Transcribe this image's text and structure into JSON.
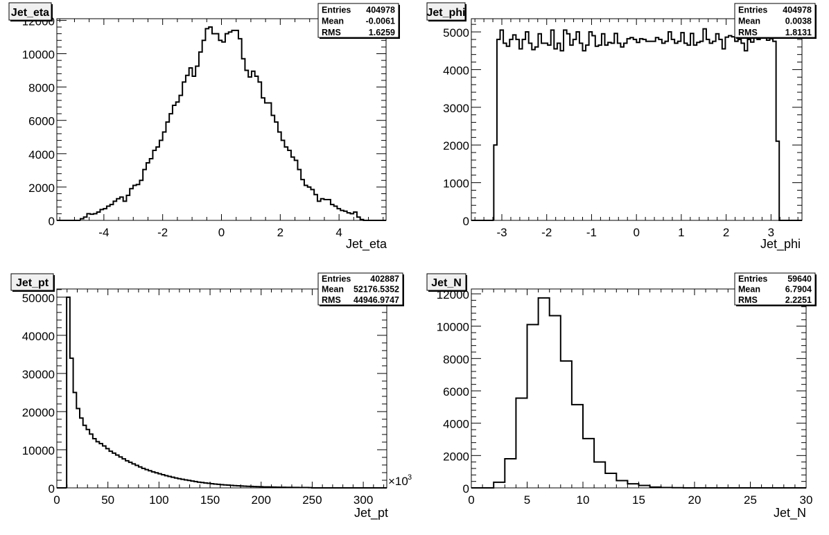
{
  "canvas": {
    "background": "#ffffff",
    "line_color": "#000000",
    "title_box_fill": "#f0f0f0"
  },
  "chart_data": [
    {
      "type": "bar",
      "histogram": true,
      "title": "Jet_eta",
      "xlabel": "Jet_eta",
      "ylabel": "",
      "xlim": [
        -5.6,
        5.6
      ],
      "ylim": [
        0,
        12100
      ],
      "xticks": [
        -4,
        -2,
        0,
        2,
        4
      ],
      "xtick_labels": [
        "-4",
        "-2",
        "0",
        "2",
        "4"
      ],
      "yticks": [
        0,
        2000,
        4000,
        6000,
        8000,
        10000,
        12000
      ],
      "ytick_labels": [
        "0",
        "2000",
        "4000",
        "6000",
        "8000",
        "10000",
        "12000"
      ],
      "x_multiplier_label": "",
      "bin_start": -4.8,
      "bin_width": 0.112,
      "values": [
        100,
        200,
        400,
        370,
        400,
        500,
        650,
        700,
        850,
        950,
        1150,
        1300,
        1400,
        1150,
        1500,
        1900,
        2100,
        2150,
        2400,
        3050,
        3450,
        3700,
        4200,
        4400,
        4800,
        5300,
        5900,
        6400,
        6900,
        7100,
        7500,
        8300,
        8700,
        9150,
        8650,
        9250,
        10100,
        10800,
        11500,
        11600,
        11200,
        11200,
        10800,
        10700,
        11200,
        11300,
        11400,
        11400,
        10900,
        9700,
        9000,
        8600,
        8950,
        8650,
        8300,
        7350,
        7050,
        7050,
        6300,
        5900,
        5300,
        4800,
        4400,
        4200,
        3800,
        3600,
        3050,
        2450,
        2100,
        2000,
        1850,
        1550,
        1150,
        1300,
        1250,
        1250,
        950,
        850,
        700,
        600,
        550,
        450,
        400,
        500,
        200,
        50
      ],
      "stats": {
        "rows": [
          {
            "label": "Entries",
            "value": "404978"
          },
          {
            "label": "Mean",
            "value": "-0.0061"
          },
          {
            "label": "RMS",
            "value": "1.6259"
          }
        ]
      }
    },
    {
      "type": "bar",
      "histogram": true,
      "title": "Jet_phi",
      "xlabel": "Jet_phi",
      "ylabel": "",
      "xlim": [
        -3.68,
        3.69
      ],
      "ylim": [
        0,
        5350
      ],
      "xticks": [
        -3,
        -2,
        -1,
        0,
        1,
        2,
        3
      ],
      "xtick_labels": [
        "-3",
        "-2",
        "-1",
        "0",
        "1",
        "2",
        "3"
      ],
      "yticks": [
        0,
        1000,
        2000,
        3000,
        4000,
        5000
      ],
      "ytick_labels": [
        "0",
        "1000",
        "2000",
        "3000",
        "4000",
        "5000"
      ],
      "x_multiplier_label": "",
      "bin_start": -3.18,
      "bin_width": 0.0707,
      "values": [
        2000,
        4800,
        5050,
        4700,
        4620,
        4800,
        4920,
        4800,
        4550,
        4800,
        5000,
        4700,
        4530,
        4600,
        4950,
        4700,
        4700,
        4650,
        5050,
        4550,
        4700,
        4500,
        5050,
        4950,
        4650,
        4800,
        5000,
        4700,
        4500,
        4650,
        5000,
        4900,
        4620,
        4650,
        4950,
        4650,
        4720,
        4700,
        4960,
        4700,
        4600,
        4700,
        4820,
        4850,
        4800,
        4720,
        4820,
        4800,
        4750,
        4750,
        4750,
        4850,
        4800,
        4700,
        4750,
        5000,
        4800,
        4700,
        4750,
        4980,
        4700,
        4650,
        4960,
        4650,
        4720,
        4750,
        5080,
        4800,
        4700,
        4750,
        4950,
        4800,
        4550,
        4860,
        4900,
        4870,
        4750,
        4800,
        4700,
        4500,
        4800,
        4730,
        4950,
        4800,
        4850,
        4900,
        4780,
        4820,
        4750,
        2100
      ],
      "stats": {
        "rows": [
          {
            "label": "Entries",
            "value": "404978"
          },
          {
            "label": "Mean",
            "value": "0.0038"
          },
          {
            "label": "RMS",
            "value": "1.8131"
          }
        ]
      }
    },
    {
      "type": "bar",
      "histogram": true,
      "title": "Jet_pt",
      "xlabel": "Jet_pt",
      "ylabel": "",
      "xlim": [
        0,
        323
      ],
      "ylim": [
        0,
        52150
      ],
      "xticks": [
        0,
        50,
        100,
        150,
        200,
        250,
        300
      ],
      "xtick_labels": [
        "0",
        "50",
        "100",
        "150",
        "200",
        "250",
        "300"
      ],
      "yticks": [
        0,
        10000,
        20000,
        30000,
        40000,
        50000
      ],
      "ytick_labels": [
        "0",
        "10000",
        "20000",
        "30000",
        "40000",
        "50000"
      ],
      "x_multiplier_label": "×10",
      "x_multiplier_exponent": "3",
      "bin_start": 9.6,
      "bin_width": 3.2,
      "values": [
        50000,
        34000,
        25000,
        20800,
        18300,
        16400,
        15300,
        14100,
        12900,
        12100,
        11600,
        11000,
        10300,
        9600,
        9100,
        8600,
        8100,
        7600,
        7100,
        6700,
        6300,
        5900,
        5500,
        5100,
        4800,
        4500,
        4200,
        3950,
        3700,
        3450,
        3200,
        3000,
        2800,
        2600,
        2400,
        2250,
        2100,
        1950,
        1800,
        1650,
        1500,
        1400,
        1300,
        1200,
        1100,
        1000,
        920,
        850,
        780,
        720,
        660,
        600,
        550,
        500,
        460,
        420,
        380,
        350,
        320,
        290,
        260,
        240,
        220,
        200,
        180,
        160,
        150,
        140,
        130,
        120,
        110,
        100,
        90,
        80,
        70
      ],
      "stats": {
        "rows": [
          {
            "label": "Entries",
            "value": "402887"
          },
          {
            "label": "Mean",
            "value": "52176.5352"
          },
          {
            "label": "RMS",
            "value": "44946.9747"
          }
        ]
      }
    },
    {
      "type": "bar",
      "histogram": true,
      "title": "Jet_N",
      "xlabel": "Jet_N",
      "ylabel": "",
      "xlim": [
        0,
        30
      ],
      "ylim": [
        0,
        12300
      ],
      "xticks": [
        0,
        5,
        10,
        15,
        20,
        25,
        30
      ],
      "xtick_labels": [
        "0",
        "5",
        "10",
        "15",
        "20",
        "25",
        "30"
      ],
      "yticks": [
        0,
        2000,
        4000,
        6000,
        8000,
        10000,
        12000
      ],
      "ytick_labels": [
        "0",
        "2000",
        "4000",
        "6000",
        "8000",
        "10000",
        "12000"
      ],
      "x_multiplier_label": "",
      "bin_start": 0,
      "bin_width": 1,
      "values": [
        0,
        0,
        350,
        1800,
        5550,
        10100,
        11750,
        10650,
        7850,
        5150,
        3050,
        1600,
        900,
        450,
        250,
        150,
        50,
        20,
        10,
        0,
        0,
        0,
        0,
        0,
        0,
        0,
        0,
        0,
        0,
        0
      ],
      "stats": {
        "rows": [
          {
            "label": "Entries",
            "value": "59640"
          },
          {
            "label": "Mean",
            "value": "6.7904"
          },
          {
            "label": "RMS",
            "value": "2.2251"
          }
        ]
      }
    }
  ]
}
